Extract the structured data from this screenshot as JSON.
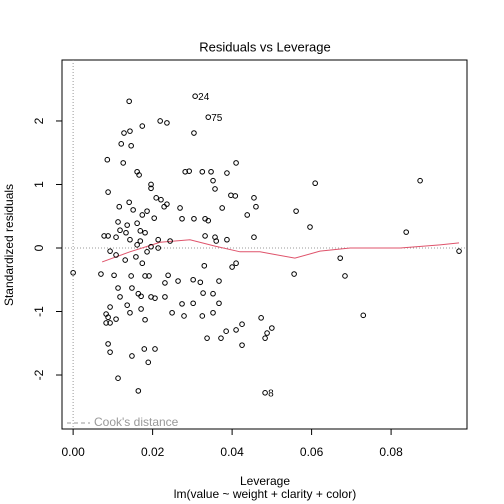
{
  "chart_data": {
    "type": "scatter",
    "title": "Residuals vs Leverage",
    "x_label": "Leverage",
    "subtitle": "lm(value ~ weight + clarity + color)",
    "y_label": "Standardized residuals",
    "legend_label": "Cook's distance",
    "xlim": [
      -0.0028,
      0.0991
    ],
    "ylim": [
      -2.85,
      2.96
    ],
    "xticks": [
      {
        "value": 0,
        "label": "0.00"
      },
      {
        "value": 0.02,
        "label": "0.02"
      },
      {
        "value": 0.04,
        "label": "0.04"
      },
      {
        "value": 0.06,
        "label": "0.06"
      },
      {
        "value": 0.08,
        "label": "0.08"
      }
    ],
    "yticks": [
      -2,
      -1,
      0,
      1,
      2
    ],
    "point_color": "#000000",
    "x": [
      0.0,
      0.0141,
      0.0307,
      0.034,
      0.0219,
      0.0236,
      0.0174,
      0.0128,
      0.0143,
      0.0304,
      0.0121,
      0.0146,
      0.0086,
      0.0126,
      0.041,
      0.0161,
      0.0166,
      0.0282,
      0.0292,
      0.0325,
      0.0347,
      0.0387,
      0.0352,
      0.0609,
      0.0873,
      0.0196,
      0.0196,
      0.0088,
      0.0357,
      0.0397,
      0.0408,
      0.0455,
      0.0209,
      0.0221,
      0.0236,
      0.0141,
      0.0151,
      0.0229,
      0.0116,
      0.0186,
      0.0269,
      0.0375,
      0.046,
      0.0561,
      0.0596,
      0.0174,
      0.0204,
      0.0304,
      0.0332,
      0.034,
      0.0438,
      0.0113,
      0.0136,
      0.0161,
      0.0274,
      0.0118,
      0.0133,
      0.0169,
      0.0078,
      0.0088,
      0.0108,
      0.0181,
      0.0169,
      0.0143,
      0.0214,
      0.0244,
      0.0332,
      0.0357,
      0.036,
      0.0387,
      0.0455,
      0.0838,
      0.0161,
      0.0196,
      0.0214,
      0.0108,
      0.0093,
      0.0186,
      0.0158,
      0.0131,
      0.0174,
      0.0672,
      0.0971,
      0.041,
      0.04,
      0.033,
      0.007,
      0.0103,
      0.0146,
      0.0181,
      0.0191,
      0.0239,
      0.0556,
      0.0684,
      0.0231,
      0.0264,
      0.0302,
      0.032,
      0.0367,
      0.0113,
      0.0148,
      0.0118,
      0.0164,
      0.0171,
      0.0206,
      0.0231,
      0.0327,
      0.0352,
      0.0093,
      0.0136,
      0.0171,
      0.0274,
      0.0196,
      0.0302,
      0.0367,
      0.0083,
      0.0088,
      0.0143,
      0.0352,
      0.0325,
      0.0249,
      0.0279,
      0.0181,
      0.0108,
      0.0083,
      0.0093,
      0.0473,
      0.073,
      0.0425,
      0.041,
      0.0385,
      0.05,
      0.0488,
      0.0337,
      0.0372,
      0.0483,
      0.0425,
      0.0088,
      0.0093,
      0.0148,
      0.0179,
      0.0206,
      0.0189,
      0.0113,
      0.0164,
      0.0483
    ],
    "values": [
      -0.39,
      2.31,
      2.39,
      2.06,
      2.0,
      1.97,
      1.92,
      1.81,
      1.84,
      1.81,
      1.64,
      1.61,
      1.39,
      1.34,
      1.34,
      1.2,
      1.15,
      1.2,
      1.21,
      1.2,
      1.2,
      1.18,
      1.06,
      1.02,
      1.06,
      1.0,
      0.94,
      0.88,
      0.93,
      0.83,
      0.82,
      0.79,
      0.79,
      0.76,
      0.69,
      0.72,
      0.6,
      0.65,
      0.65,
      0.58,
      0.63,
      0.63,
      0.65,
      0.58,
      0.33,
      0.52,
      0.47,
      0.46,
      0.46,
      0.43,
      0.52,
      0.41,
      0.36,
      0.39,
      0.46,
      0.28,
      0.24,
      0.27,
      0.19,
      0.19,
      0.17,
      0.24,
      0.11,
      0.13,
      0.13,
      0.11,
      0.19,
      0.17,
      0.11,
      0.13,
      0.17,
      0.25,
      0.05,
      0.02,
      0.0,
      -0.11,
      -0.05,
      -0.06,
      -0.14,
      -0.19,
      -0.24,
      -0.16,
      -0.05,
      -0.24,
      -0.3,
      -0.28,
      -0.41,
      -0.43,
      -0.44,
      -0.44,
      -0.44,
      -0.43,
      -0.41,
      -0.44,
      -0.55,
      -0.52,
      -0.5,
      -0.54,
      -0.52,
      -0.63,
      -0.63,
      -0.77,
      -0.72,
      -0.76,
      -0.79,
      -0.77,
      -0.71,
      -0.72,
      -0.93,
      -0.9,
      -0.96,
      -0.88,
      -0.77,
      -0.87,
      -0.87,
      -1.04,
      -1.09,
      -1.02,
      -1.02,
      -1.07,
      -1.02,
      -1.07,
      -1.13,
      -1.12,
      -1.18,
      -1.18,
      -1.1,
      -1.06,
      -1.2,
      -1.29,
      -1.31,
      -1.26,
      -1.34,
      -1.42,
      -1.42,
      -1.42,
      -1.53,
      -1.51,
      -1.64,
      -1.7,
      -1.59,
      -1.59,
      -1.8,
      -2.05,
      -2.25,
      -2.28
    ],
    "annotations": [
      {
        "text": "24",
        "x": 0.0307,
        "y": 2.39
      },
      {
        "text": "75",
        "x": 0.034,
        "y": 2.06
      },
      {
        "text": "8",
        "x": 0.0483,
        "y": -2.28
      }
    ],
    "smooth": {
      "color": "#df536b",
      "x": [
        0.0073,
        0.0143,
        0.0219,
        0.0294,
        0.0357,
        0.042,
        0.047,
        0.0558,
        0.0621,
        0.0697,
        0.0823,
        0.0923,
        0.0971
      ],
      "values": [
        -0.22,
        -0.06,
        0.09,
        0.13,
        0.03,
        -0.06,
        -0.06,
        -0.16,
        -0.05,
        0.0,
        0.0,
        0.05,
        0.08
      ]
    }
  }
}
